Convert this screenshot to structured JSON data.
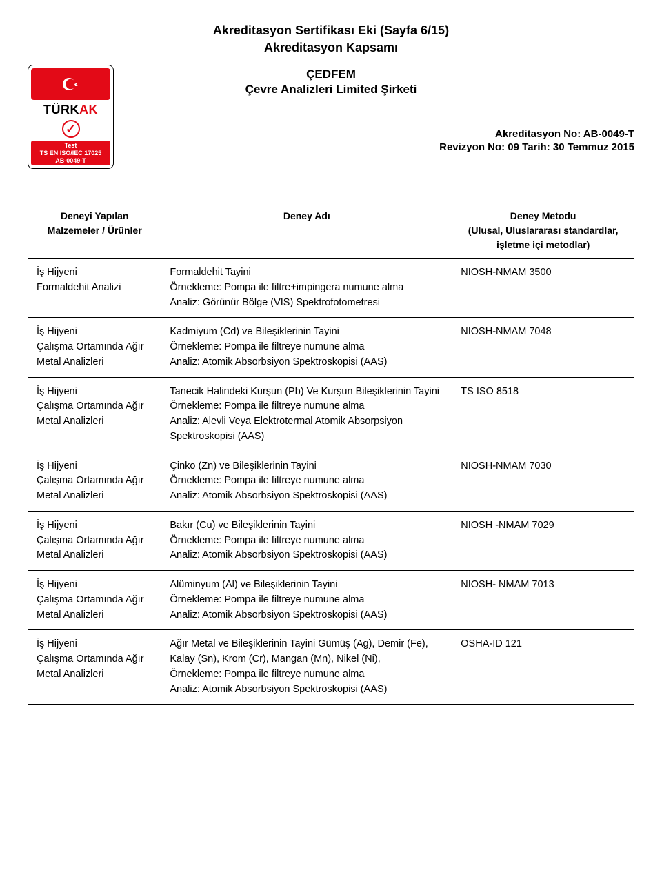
{
  "header": {
    "title": "Akreditasyon Sertifikası Eki (Sayfa 6/15)",
    "subtitle": "Akreditasyon Kapsamı"
  },
  "org": {
    "line1": "ÇEDFEM",
    "line2": "Çevre Analizleri Limited Şirketi"
  },
  "logo": {
    "label_turk": "TÜRK",
    "label_ak": "AK",
    "test": "Test",
    "iso": "TS EN ISO/IEC 17025",
    "ab": "AB-0049-T",
    "check": "✓"
  },
  "accred": {
    "no": "Akreditasyon No: AB-0049-T",
    "rev": "Revizyon No: 09 Tarih: 30 Temmuz 2015"
  },
  "columns": {
    "a": "Deneyi Yapılan\nMalzemeler / Ürünler",
    "b": "Deney Adı",
    "c": "Deney Metodu\n(Ulusal, Uluslararası standardlar,\nişletme içi metodlar)"
  },
  "rows": [
    {
      "material": "İş Hijyeni\nFormaldehit Analizi",
      "test": "Formaldehit Tayini\nÖrnekleme: Pompa ile filtre+impingera numune alma\nAnaliz: Görünür Bölge (VIS) Spektrofotometresi",
      "method": "NIOSH-NMAM 3500"
    },
    {
      "material": "İş Hijyeni\nÇalışma Ortamında Ağır Metal Analizleri",
      "test": "Kadmiyum (Cd) ve Bileşiklerinin Tayini\nÖrnekleme: Pompa ile filtreye numune alma\nAnaliz: Atomik Absorbsiyon Spektroskopisi (AAS)",
      "method": "NIOSH-NMAM 7048"
    },
    {
      "material": "İş Hijyeni\nÇalışma Ortamında Ağır Metal Analizleri",
      "test": "Tanecik Halindeki Kurşun (Pb) Ve Kurşun Bileşiklerinin Tayini\nÖrnekleme: Pompa ile filtreye numune alma\nAnaliz: Alevli Veya Elektrotermal Atomik Absorpsiyon Spektroskopisi (AAS)",
      "method": "TS ISO 8518"
    },
    {
      "material": "İş Hijyeni\nÇalışma Ortamında Ağır Metal Analizleri",
      "test": "Çinko (Zn) ve Bileşiklerinin Tayini\nÖrnekleme: Pompa ile filtreye numune alma\nAnaliz: Atomik Absorbsiyon Spektroskopisi (AAS)",
      "method": "NIOSH-NMAM 7030"
    },
    {
      "material": "İş Hijyeni\nÇalışma Ortamında Ağır Metal Analizleri",
      "test": "Bakır (Cu) ve Bileşiklerinin Tayini\nÖrnekleme: Pompa ile filtreye numune alma\nAnaliz: Atomik Absorbsiyon Spektroskopisi (AAS)",
      "method": "NIOSH -NMAM 7029"
    },
    {
      "material": "İş Hijyeni\nÇalışma Ortamında Ağır Metal Analizleri",
      "test": "Alüminyum (Al) ve Bileşiklerinin Tayini\nÖrnekleme: Pompa ile filtreye numune alma\nAnaliz: Atomik Absorbsiyon Spektroskopisi (AAS)",
      "method": "NIOSH- NMAM 7013"
    },
    {
      "material": "İş Hijyeni\nÇalışma Ortamında Ağır Metal Analizleri",
      "test": "Ağır Metal ve Bileşiklerinin Tayini Gümüş (Ag), Demir (Fe), Kalay (Sn), Krom (Cr), Mangan (Mn), Nikel (Ni),\nÖrnekleme: Pompa ile filtreye numune alma\nAnaliz: Atomik Absorbsiyon Spektroskopisi (AAS)",
      "method": "OSHA-ID 121"
    }
  ]
}
